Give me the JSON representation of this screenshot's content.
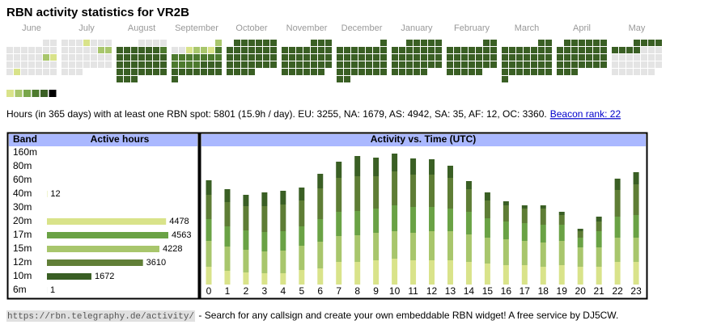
{
  "header": {
    "title": "RBN activity statistics for VR2B"
  },
  "heatmap": {
    "colors": [
      "#e4e4e4",
      "#d9e38a",
      "#a8c66c",
      "#78a64a",
      "#4d7a2e",
      "#3a5f24",
      "#000000"
    ],
    "months": [
      {
        "name": "June",
        "rows": [
          [
            null,
            null,
            null,
            null,
            null,
            0,
            0
          ],
          [
            0,
            0,
            0,
            0,
            0,
            0,
            0
          ],
          [
            0,
            0,
            0,
            0,
            0,
            2,
            1
          ],
          [
            0,
            0,
            0,
            0,
            0,
            0,
            0
          ],
          [
            0,
            1,
            0,
            0,
            0,
            0,
            0
          ]
        ]
      },
      {
        "name": "July",
        "rows": [
          [
            0,
            0,
            0,
            1,
            0,
            0,
            0
          ],
          [
            0,
            0,
            0,
            0,
            0,
            2,
            2
          ],
          [
            0,
            0,
            0,
            0,
            0,
            0,
            0
          ],
          [
            0,
            0,
            0,
            0,
            0,
            0,
            0
          ],
          [
            0,
            0,
            0,
            null,
            null,
            null,
            null
          ]
        ]
      },
      {
        "name": "August",
        "rows": [
          [
            null,
            null,
            null,
            0,
            0,
            0,
            0
          ],
          [
            5,
            5,
            5,
            5,
            5,
            5,
            4
          ],
          [
            5,
            5,
            5,
            5,
            5,
            5,
            5
          ],
          [
            5,
            5,
            5,
            5,
            5,
            5,
            5
          ],
          [
            5,
            5,
            5,
            5,
            5,
            5,
            5
          ],
          [
            5,
            5,
            5,
            null,
            null,
            null,
            null
          ]
        ]
      },
      {
        "name": "September",
        "rows": [
          [
            null,
            null,
            null,
            null,
            null,
            null,
            2
          ],
          [
            0,
            0,
            1,
            2,
            2,
            1,
            4
          ],
          [
            4,
            4,
            4,
            4,
            4,
            4,
            4
          ],
          [
            4,
            4,
            4,
            4,
            5,
            5,
            5
          ],
          [
            5,
            5,
            5,
            5,
            5,
            5,
            5
          ],
          [
            5,
            null,
            null,
            null,
            null,
            null,
            null
          ]
        ]
      },
      {
        "name": "October",
        "rows": [
          [
            null,
            5,
            5,
            5,
            5,
            5,
            5
          ],
          [
            5,
            5,
            5,
            5,
            5,
            5,
            5
          ],
          [
            5,
            5,
            5,
            5,
            5,
            5,
            5
          ],
          [
            5,
            5,
            5,
            5,
            5,
            5,
            5
          ],
          [
            5,
            5,
            5,
            5,
            null,
            null,
            null
          ]
        ]
      },
      {
        "name": "November",
        "rows": [
          [
            null,
            null,
            null,
            null,
            5,
            5,
            5
          ],
          [
            5,
            5,
            5,
            5,
            5,
            5,
            5
          ],
          [
            5,
            5,
            5,
            5,
            5,
            5,
            5
          ],
          [
            5,
            5,
            5,
            5,
            5,
            5,
            5
          ],
          [
            5,
            5,
            5,
            5,
            5,
            5,
            null
          ]
        ]
      },
      {
        "name": "December",
        "rows": [
          [
            null,
            null,
            null,
            null,
            null,
            null,
            5
          ],
          [
            5,
            5,
            5,
            5,
            5,
            5,
            5
          ],
          [
            5,
            5,
            5,
            5,
            5,
            5,
            5
          ],
          [
            5,
            5,
            5,
            5,
            5,
            5,
            5
          ],
          [
            5,
            5,
            5,
            5,
            5,
            5,
            5
          ],
          [
            5,
            5,
            null,
            null,
            null,
            null,
            null
          ]
        ]
      },
      {
        "name": "January",
        "rows": [
          [
            null,
            null,
            5,
            5,
            5,
            5,
            5
          ],
          [
            5,
            5,
            5,
            5,
            5,
            5,
            5
          ],
          [
            5,
            5,
            5,
            5,
            5,
            5,
            5
          ],
          [
            5,
            5,
            5,
            5,
            5,
            5,
            5
          ],
          [
            5,
            5,
            5,
            5,
            5,
            null,
            null
          ]
        ]
      },
      {
        "name": "February",
        "rows": [
          [
            null,
            null,
            null,
            null,
            null,
            5,
            5
          ],
          [
            5,
            5,
            5,
            5,
            5,
            5,
            5
          ],
          [
            5,
            5,
            5,
            5,
            5,
            5,
            5
          ],
          [
            5,
            5,
            5,
            5,
            5,
            5,
            5
          ],
          [
            5,
            5,
            5,
            5,
            5,
            null,
            null
          ]
        ]
      },
      {
        "name": "March",
        "rows": [
          [
            null,
            null,
            null,
            null,
            null,
            5,
            5
          ],
          [
            5,
            5,
            5,
            5,
            5,
            5,
            5
          ],
          [
            5,
            5,
            5,
            5,
            5,
            5,
            5
          ],
          [
            5,
            5,
            5,
            5,
            5,
            5,
            5
          ],
          [
            5,
            5,
            5,
            5,
            5,
            5,
            5
          ],
          [
            5,
            null,
            null,
            null,
            null,
            null,
            null
          ]
        ]
      },
      {
        "name": "April",
        "rows": [
          [
            null,
            5,
            5,
            5,
            5,
            5,
            5
          ],
          [
            5,
            5,
            5,
            5,
            5,
            5,
            5
          ],
          [
            5,
            5,
            5,
            5,
            5,
            5,
            5
          ],
          [
            5,
            5,
            5,
            5,
            5,
            5,
            5
          ],
          [
            5,
            5,
            5,
            null,
            null,
            null,
            null
          ]
        ]
      },
      {
        "name": "May",
        "rows": [
          [
            null,
            null,
            null,
            5,
            5,
            5,
            5
          ],
          [
            5,
            5,
            5,
            5,
            0,
            0,
            0
          ],
          [
            0,
            0,
            0,
            0,
            0,
            0,
            0
          ],
          [
            0,
            0,
            0,
            0,
            0,
            0,
            0
          ],
          [
            0,
            0,
            0,
            0,
            0,
            0,
            null
          ]
        ]
      }
    ]
  },
  "stats": {
    "text": "Hours (in 365 days) with at least one RBN spot: 5801 (15.9h / day). EU: 3255, NA: 1679, AS: 4942, SA: 35, AF: 12, OC: 3360.",
    "link": "Beacon rank: 22"
  },
  "bands": {
    "headers": [
      "Band",
      "Active hours"
    ],
    "categories": [
      "160m",
      "80m",
      "60m",
      "40m",
      "30m",
      "20m",
      "17m",
      "15m",
      "12m",
      "10m",
      "6m"
    ],
    "values": [
      null,
      null,
      null,
      12,
      null,
      4478,
      4563,
      4228,
      3610,
      1672,
      1
    ],
    "colors": [
      null,
      null,
      null,
      "#d9e38a",
      "#d9e38a",
      "#d9e38a",
      "#6aa245",
      "#a8c66c",
      "#617f37",
      "#3a5f24",
      "#3a5f24"
    ]
  },
  "chart_data": {
    "type": "bar",
    "stacked": true,
    "title": "Activity vs. Time (UTC)",
    "categories": [
      "0",
      "1",
      "2",
      "3",
      "4",
      "5",
      "6",
      "7",
      "8",
      "9",
      "10",
      "11",
      "12",
      "13",
      "14",
      "15",
      "16",
      "17",
      "18",
      "19",
      "20",
      "21",
      "22",
      "23"
    ],
    "series": [
      {
        "color": "#d9e38a",
        "values": [
          22,
          17,
          15,
          14,
          14,
          18,
          20,
          28,
          28,
          30,
          32,
          30,
          30,
          30,
          28,
          26,
          24,
          24,
          22,
          24,
          22,
          22,
          28,
          28
        ]
      },
      {
        "color": "#a8c66c",
        "values": [
          32,
          30,
          28,
          27,
          28,
          30,
          33,
          32,
          33,
          34,
          34,
          34,
          36,
          36,
          34,
          32,
          32,
          30,
          30,
          30,
          24,
          24,
          30,
          30
        ]
      },
      {
        "color": "#6aa245",
        "values": [
          27,
          25,
          24,
          24,
          24,
          24,
          28,
          30,
          30,
          30,
          32,
          32,
          30,
          28,
          28,
          24,
          22,
          22,
          22,
          20,
          12,
          20,
          26,
          28
        ]
      },
      {
        "color": "#5e7d35",
        "values": [
          30,
          30,
          30,
          32,
          33,
          32,
          38,
          42,
          43,
          40,
          42,
          40,
          40,
          38,
          28,
          22,
          20,
          18,
          20,
          12,
          8,
          12,
          33,
          38
        ]
      },
      {
        "color": "#3a5f24",
        "values": [
          18,
          16,
          14,
          17,
          17,
          16,
          18,
          20,
          25,
          23,
          22,
          20,
          19,
          15,
          10,
          10,
          5,
          4,
          4,
          4,
          3,
          6,
          14,
          15
        ]
      }
    ]
  },
  "footer": {
    "url": "https://rbn.telegraphy.de/activity/",
    "text": " - Search for any callsign and create your own embeddable RBN widget! A free service by DJ5CW."
  }
}
